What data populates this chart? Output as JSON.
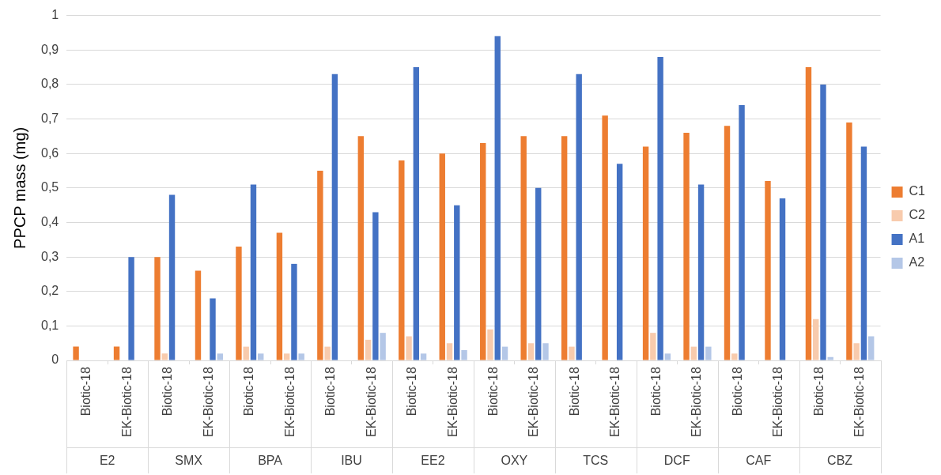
{
  "chart_data": {
    "type": "bar",
    "ylabel": "PPCP mass (mg)",
    "categories": [
      "Biotic-18",
      "EK-Biotic-18",
      "Biotic-18",
      "EK-Biotic-18",
      "Biotic-18",
      "EK-Biotic-18",
      "Biotic-18",
      "EK-Biotic-18",
      "Biotic-18",
      "EK-Biotic-18",
      "Biotic-18",
      "EK-Biotic-18",
      "Biotic-18",
      "EK-Biotic-18",
      "Biotic-18",
      "EK-Biotic-18",
      "Biotic-18",
      "EK-Biotic-18",
      "Biotic-18",
      "EK-Biotic-18"
    ],
    "annotations": [
      "E2",
      "SMX",
      "BPA",
      "IBU",
      "EE2",
      "OXY",
      "TCS",
      "DCF",
      "CAF",
      "CBZ"
    ],
    "series": [
      {
        "name": "C1",
        "color": "#ed7d31",
        "values": [
          0.04,
          0.04,
          0.3,
          0.26,
          0.33,
          0.37,
          0.55,
          0.65,
          0.58,
          0.6,
          0.63,
          0.65,
          0.65,
          0.71,
          0.62,
          0.66,
          0.68,
          0.52,
          0.85,
          0.69
        ]
      },
      {
        "name": "C2",
        "color": "#f8cbad",
        "values": [
          0,
          0,
          0.02,
          0,
          0.04,
          0.02,
          0.04,
          0.06,
          0.07,
          0.05,
          0.09,
          0.05,
          0.04,
          0,
          0.08,
          0.04,
          0.02,
          0,
          0.12,
          0.05
        ]
      },
      {
        "name": "A1",
        "color": "#4472c4",
        "values": [
          0,
          0.3,
          0.48,
          0.18,
          0.51,
          0.28,
          0.83,
          0.43,
          0.85,
          0.45,
          0.94,
          0.5,
          0.83,
          0.57,
          0.88,
          0.51,
          0.74,
          0.47,
          0.8,
          0.62
        ]
      },
      {
        "name": "A2",
        "color": "#b4c7e7",
        "values": [
          0,
          0,
          0,
          0.02,
          0.02,
          0.02,
          0,
          0.08,
          0.02,
          0.03,
          0.04,
          0.05,
          0,
          0,
          0.02,
          0.04,
          0,
          0,
          0.01,
          0.07
        ]
      }
    ],
    "ylim": [
      0,
      1
    ],
    "yticks": [
      {
        "value": 0,
        "label": "0"
      },
      {
        "value": 0.1,
        "label": "0,1"
      },
      {
        "value": 0.2,
        "label": "0,2"
      },
      {
        "value": 0.3,
        "label": "0,3"
      },
      {
        "value": 0.4,
        "label": "0,4"
      },
      {
        "value": 0.5,
        "label": "0,5"
      },
      {
        "value": 0.6,
        "label": "0,6"
      },
      {
        "value": 0.7,
        "label": "0,7"
      },
      {
        "value": 0.8,
        "label": "0,8"
      },
      {
        "value": 0.9,
        "label": "0,9"
      },
      {
        "value": 1,
        "label": "1"
      }
    ],
    "grid": "y",
    "legend": "right"
  }
}
